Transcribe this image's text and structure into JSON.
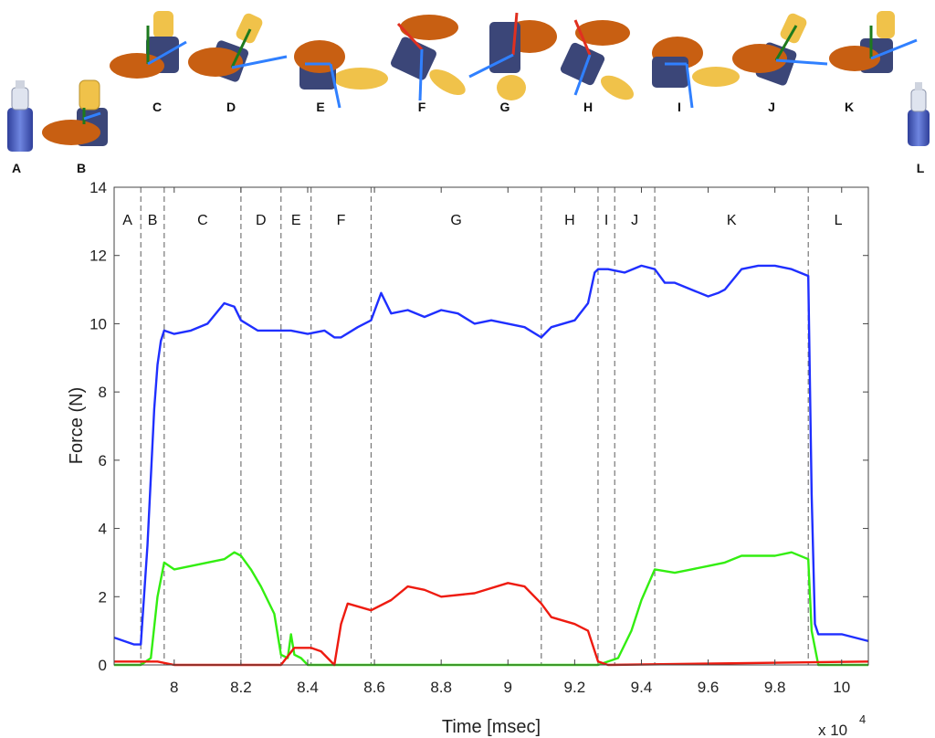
{
  "chart_data": {
    "type": "line",
    "xlabel": "Time [msec]",
    "ylabel": "Force (N)",
    "x_multiplier_label": "x 10",
    "x_multiplier_exponent": "4",
    "xlim": [
      78200,
      100800
    ],
    "ylim": [
      0,
      14
    ],
    "x_ticks": [
      80000,
      82000,
      84000,
      86000,
      88000,
      90000,
      92000,
      94000,
      96000,
      98000,
      100000
    ],
    "x_tick_labels": [
      "8",
      "8.2",
      "8.4",
      "8.6",
      "8.8",
      "9",
      "9.2",
      "9.4",
      "9.6",
      "9.8",
      "10"
    ],
    "y_ticks": [
      0,
      2,
      4,
      6,
      8,
      10,
      12,
      14
    ],
    "y_tick_labels": [
      "0",
      "2",
      "4",
      "6",
      "8",
      "10",
      "12",
      "14"
    ],
    "grid": false,
    "boundaries": [
      79000,
      79700,
      82000,
      83200,
      84100,
      85900,
      91000,
      92700,
      93200,
      94400,
      99000
    ],
    "segment_labels": [
      "A",
      "B",
      "C",
      "D",
      "E",
      "F",
      "G",
      "H",
      "I",
      "J",
      "K",
      "L"
    ],
    "series": [
      {
        "color": "#1f2fff",
        "x": [
          78200,
          78500,
          78800,
          79000,
          79200,
          79400,
          79500,
          79600,
          79700,
          80000,
          80500,
          81000,
          81500,
          81800,
          82000,
          82500,
          83000,
          83500,
          84000,
          84500,
          84800,
          85000,
          85500,
          85900,
          86200,
          86500,
          87000,
          87500,
          88000,
          88500,
          89000,
          89500,
          90000,
          90500,
          91000,
          91300,
          92000,
          92400,
          92600,
          92700,
          93000,
          93500,
          94000,
          94400,
          94700,
          95000,
          95500,
          96000,
          96300,
          96500,
          97000,
          97500,
          98000,
          98500,
          99000,
          99100,
          99200,
          99300,
          100000,
          100800
        ],
        "y": [
          0.8,
          0.7,
          0.6,
          0.6,
          3.5,
          7.5,
          8.8,
          9.5,
          9.8,
          9.7,
          9.8,
          10.0,
          10.6,
          10.5,
          10.1,
          9.8,
          9.8,
          9.8,
          9.7,
          9.8,
          9.6,
          9.6,
          9.9,
          10.1,
          10.9,
          10.3,
          10.4,
          10.2,
          10.4,
          10.3,
          10.0,
          10.1,
          10.0,
          9.9,
          9.6,
          9.9,
          10.1,
          10.6,
          11.5,
          11.6,
          11.6,
          11.5,
          11.7,
          11.6,
          11.2,
          11.2,
          11.0,
          10.8,
          10.9,
          11.0,
          11.6,
          11.7,
          11.7,
          11.6,
          11.4,
          5.0,
          1.2,
          0.9,
          0.9,
          0.7
        ]
      },
      {
        "color": "#33ee11",
        "x": [
          78200,
          79000,
          79300,
          79500,
          79700,
          80000,
          80500,
          81000,
          81500,
          81800,
          82000,
          82300,
          82600,
          83000,
          83200,
          83400,
          83500,
          83600,
          83800,
          84000,
          84100,
          91000,
          92700,
          93000,
          93300,
          93700,
          94000,
          94400,
          95000,
          95500,
          96000,
          96500,
          97000,
          97500,
          98000,
          98500,
          99000,
          99100,
          99300,
          100800
        ],
        "y": [
          0.0,
          0.0,
          0.2,
          2.0,
          3.0,
          2.8,
          2.9,
          3.0,
          3.1,
          3.3,
          3.2,
          2.8,
          2.3,
          1.5,
          0.3,
          0.2,
          0.9,
          0.3,
          0.2,
          0.0,
          0.0,
          0.0,
          0.0,
          0.1,
          0.2,
          1.0,
          1.9,
          2.8,
          2.7,
          2.8,
          2.9,
          3.0,
          3.2,
          3.2,
          3.2,
          3.3,
          3.1,
          1.0,
          0.0,
          0.0
        ]
      },
      {
        "color": "#ee1b10",
        "x": [
          78200,
          79500,
          80000,
          83200,
          83600,
          84100,
          84400,
          84800,
          85000,
          85200,
          85900,
          86500,
          87000,
          87500,
          88000,
          89000,
          90000,
          90500,
          91000,
          91300,
          92000,
          92400,
          92700,
          93000,
          100800
        ],
        "y": [
          0.1,
          0.1,
          0.0,
          0.0,
          0.5,
          0.5,
          0.4,
          0.0,
          1.2,
          1.8,
          1.6,
          1.9,
          2.3,
          2.2,
          2.0,
          2.1,
          2.4,
          2.3,
          1.8,
          1.4,
          1.2,
          1.0,
          0.1,
          0.0,
          0.1
        ]
      }
    ]
  },
  "pose_labels": [
    "A",
    "B",
    "C",
    "D",
    "E",
    "F",
    "G",
    "H",
    "I",
    "J",
    "K",
    "L"
  ]
}
